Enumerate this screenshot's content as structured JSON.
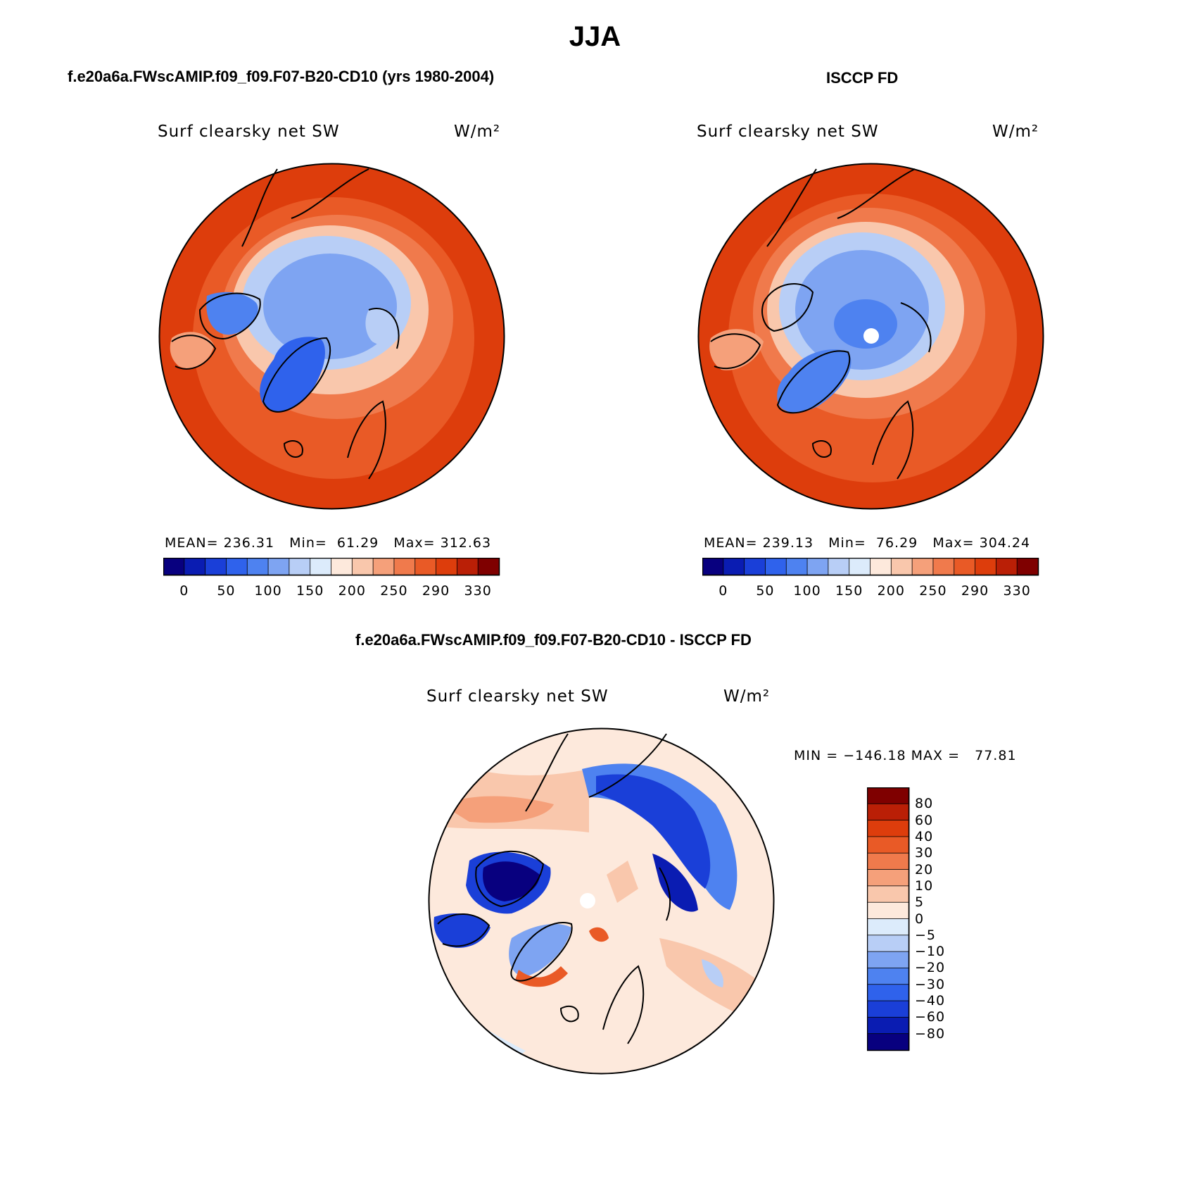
{
  "figure": {
    "title": "JJA"
  },
  "colors": {
    "seq": [
      "#08007f",
      "#0a1cb2",
      "#1a3fd8",
      "#2f62ec",
      "#4e82f0",
      "#7ea4f2",
      "#b8cef6",
      "#dcebfb",
      "#fde9dc",
      "#f9c7ac",
      "#f5a07a",
      "#f07a4c",
      "#e95a26",
      "#dd3d0c",
      "#ba1f06",
      "#7f0000"
    ],
    "diff": [
      "#08007f",
      "#0a1cb2",
      "#1a3fd8",
      "#2f62ec",
      "#4e82f0",
      "#7ea4f2",
      "#b8cef6",
      "#dcebfb",
      "#fde9dc",
      "#f9c7ac",
      "#f5a07a",
      "#f07a4c",
      "#e95a26",
      "#dd3d0c",
      "#ba1f06",
      "#7f0000"
    ]
  },
  "panels": {
    "model": {
      "case_title": "f.e20a6a.FWscAMIP.f09_f09.F07-B20-CD10 (yrs 1980-2004)",
      "variable": "Surf clearsky net SW",
      "units": "W/m²",
      "stats_text": "MEAN= 236.31   Min=  61.29   Max= 312.63",
      "mean": 236.31,
      "min": 61.29,
      "max": 312.63,
      "colorbar_ticks": [
        "0",
        "50",
        "100",
        "150",
        "200",
        "250",
        "290",
        "330"
      ]
    },
    "obs": {
      "case_title": "ISCCP FD",
      "variable": "Surf clearsky net SW",
      "units": "W/m²",
      "stats_text": "MEAN= 239.13   Min=  76.29   Max= 304.24",
      "mean": 239.13,
      "min": 76.29,
      "max": 304.24,
      "colorbar_ticks": [
        "0",
        "50",
        "100",
        "150",
        "200",
        "250",
        "290",
        "330"
      ]
    },
    "diff": {
      "case_title": "f.e20a6a.FWscAMIP.f09_f09.F07-B20-CD10 - ISCCP FD",
      "variable": "Surf clearsky net SW",
      "units": "W/m²",
      "stats_text": "MIN = −146.18 MAX =   77.81",
      "min": -146.18,
      "max": 77.81,
      "colorbar_ticks": [
        "80",
        "60",
        "40",
        "30",
        "20",
        "10",
        "5",
        "0",
        "−5",
        "−10",
        "−20",
        "−30",
        "−40",
        "−60",
        "−80"
      ]
    }
  }
}
